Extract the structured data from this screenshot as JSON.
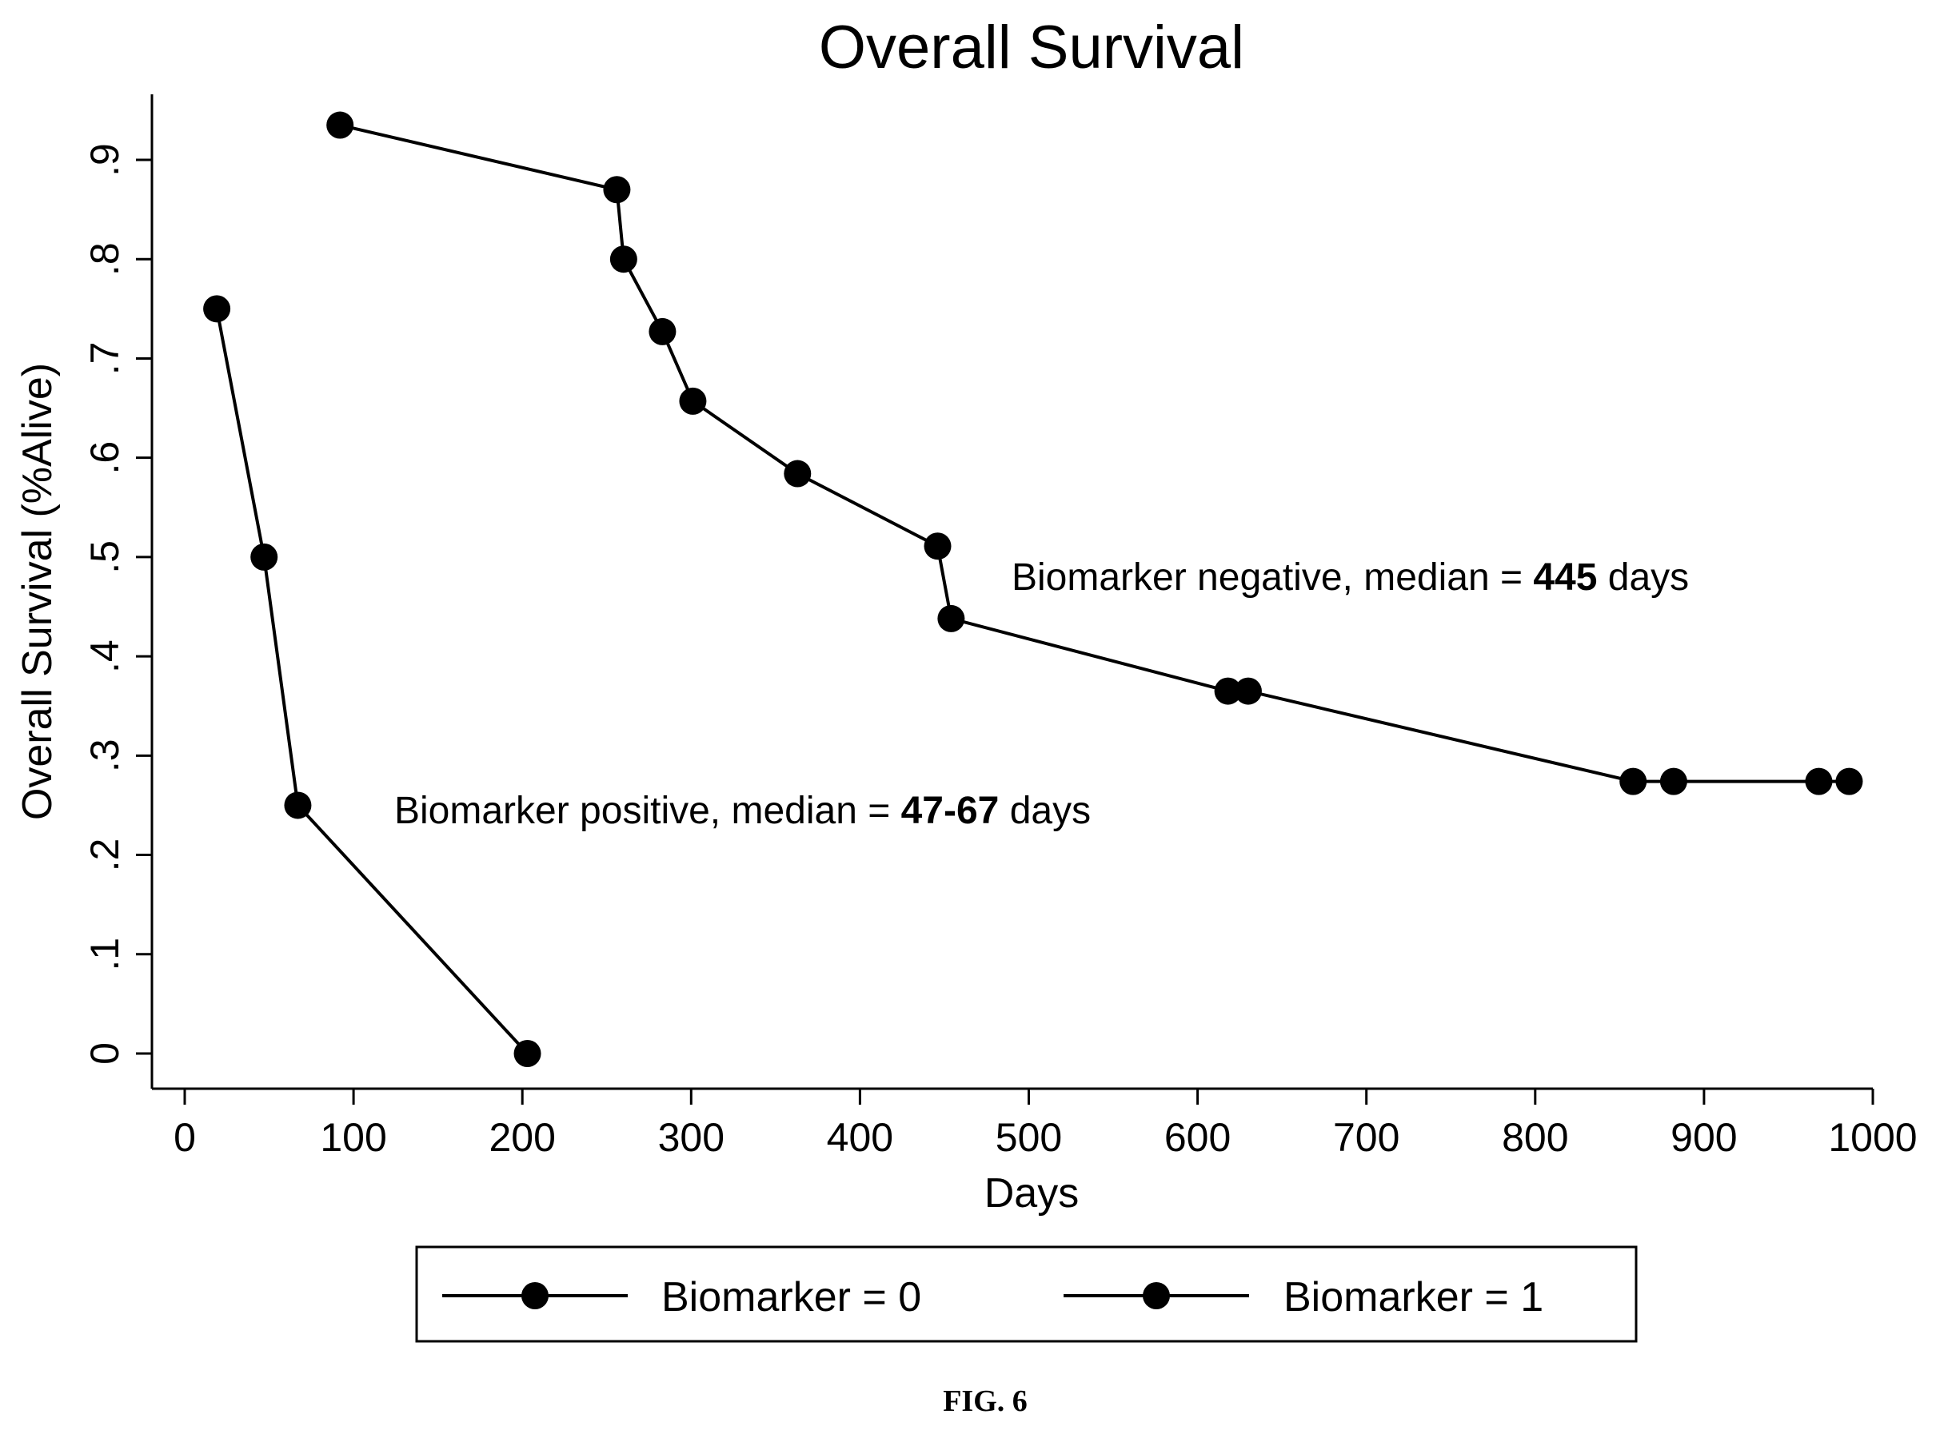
{
  "chart_data": {
    "type": "line",
    "title": "Overall Survival",
    "xlabel": "Days",
    "ylabel": "Overall Survival (%Alive)",
    "xlim": [
      -20,
      1000
    ],
    "ylim": [
      -0.03,
      0.965
    ],
    "xticks": [
      0,
      100,
      200,
      300,
      400,
      500,
      600,
      700,
      800,
      900,
      1000
    ],
    "xtick_labels": [
      "0",
      "100",
      "200",
      "300",
      "400",
      "500",
      "600",
      "700",
      "800",
      "900",
      "1000"
    ],
    "yticks": [
      0,
      0.1,
      0.2,
      0.3,
      0.4,
      0.5,
      0.6,
      0.7,
      0.8,
      0.9
    ],
    "ytick_labels": [
      "0",
      ".1",
      ".2",
      ".3",
      ".4",
      ".5",
      ".6",
      ".7",
      ".8",
      ".9"
    ],
    "grid": false,
    "legend_position": "bottom",
    "series": [
      {
        "name": "Biomarker = 0",
        "x": [
          92,
          256,
          260,
          283,
          301,
          363,
          446,
          454,
          618,
          630,
          858,
          882,
          968,
          986
        ],
        "y": [
          0.935,
          0.87,
          0.8,
          0.727,
          0.657,
          0.584,
          0.511,
          0.438,
          0.365,
          0.365,
          0.274,
          0.274,
          0.274,
          0.274
        ]
      },
      {
        "name": "Biomarker = 1",
        "x": [
          19,
          47,
          67,
          203
        ],
        "y": [
          0.75,
          0.5,
          0.25,
          0.0
        ]
      }
    ],
    "annotations": [
      {
        "prefix": "Biomarker negative, median = ",
        "bold": "445",
        "suffix": " days"
      },
      {
        "prefix": "Biomarker positive, median = ",
        "bold": "47-67",
        "suffix": " days"
      }
    ]
  },
  "caption": "FIG. 6"
}
